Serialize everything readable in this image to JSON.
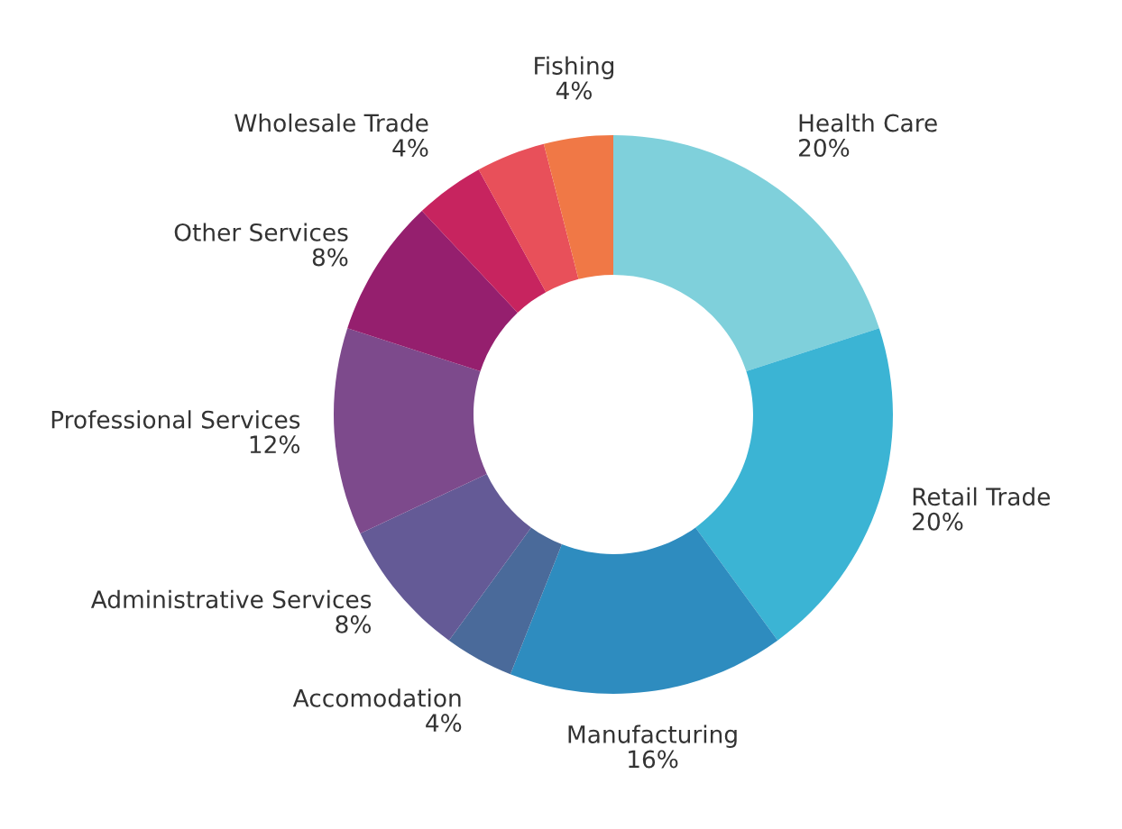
{
  "chart_data": {
    "type": "donut",
    "categories": [
      "Health Care",
      "Retail Trade",
      "Manufacturing",
      "Accomodation",
      "Administrative Services",
      "Professional Services",
      "Other Services",
      "Wholesale Trade",
      null,
      "Fishing"
    ],
    "values": [
      20,
      20,
      16,
      4,
      8,
      12,
      8,
      4,
      4,
      4
    ],
    "value_labels": [
      "20%",
      "20%",
      "16%",
      "4%",
      "8%",
      "12%",
      "8%",
      "4%",
      null,
      "4%"
    ],
    "colors": [
      "#7fd0db",
      "#3bb4d4",
      "#2e8cbf",
      "#4a6a9a",
      "#645a96",
      "#7d4a8c",
      "#951f6e",
      "#c7245f",
      "#e8505a",
      "#f07846"
    ],
    "legend": false
  }
}
